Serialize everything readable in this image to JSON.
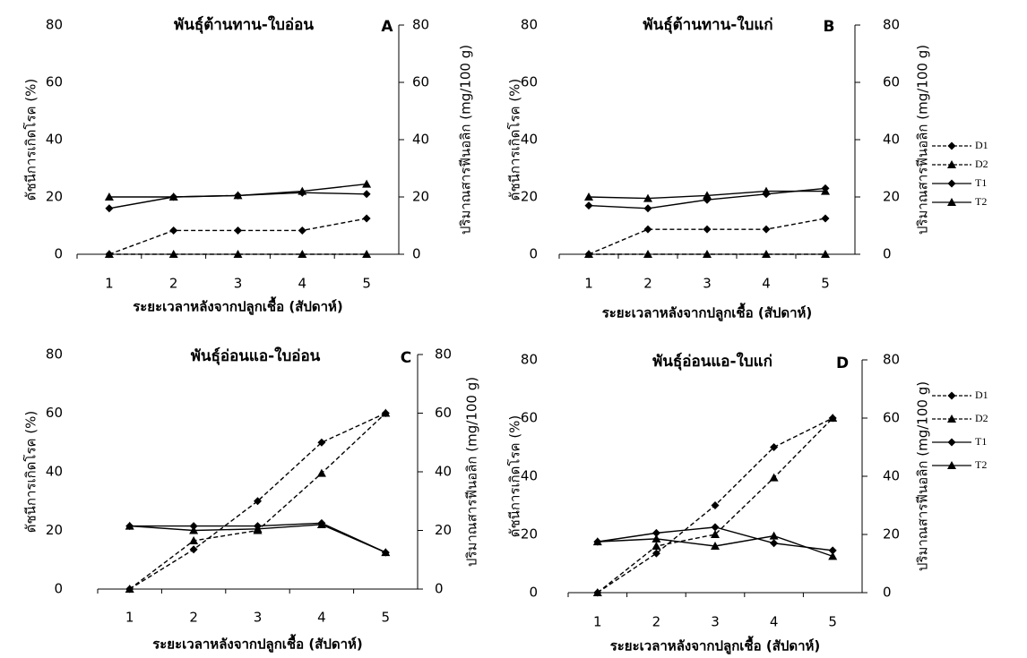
{
  "chart_data": [
    {
      "type": "line",
      "title": "พันธุ์ต้านทาน-ใบอ่อน",
      "label": "A",
      "x_label": "ระยะเวลาหลังจากปลูกเชื้อ (สัปดาห์)",
      "y_label": "ดัชนีการเกิดโรค (%)",
      "y2_label": "ปริมาณสารฟีนอลิก (mg/100 g)",
      "categories": [
        "1",
        "2",
        "3",
        "4",
        "5"
      ],
      "ylim": [
        0,
        80
      ],
      "yticks": [
        0,
        20,
        40,
        60,
        80
      ],
      "y2lim": [
        0,
        80
      ],
      "y2ticks": [
        0,
        20,
        40,
        60,
        80
      ],
      "series": [
        {
          "name": "D1",
          "color": "#000000",
          "dash": "dashed",
          "marker": "diamond",
          "values": [
            0,
            8.3,
            8.3,
            8.3,
            12.5
          ]
        },
        {
          "name": "D2",
          "color": "#000000",
          "dash": "dashed",
          "marker": "triangle",
          "values": [
            0,
            0,
            0,
            0,
            0
          ]
        },
        {
          "name": "T1",
          "color": "#000000",
          "dash": "solid",
          "marker": "diamond",
          "axis": "y2",
          "values": [
            16,
            20,
            20.5,
            21.5,
            21
          ]
        },
        {
          "name": "T2",
          "color": "#000000",
          "dash": "solid",
          "marker": "triangle",
          "axis": "y2",
          "values": [
            20,
            20,
            20.5,
            22,
            24.5
          ]
        }
      ]
    },
    {
      "type": "line",
      "title": "พันธุ์ต้านทาน-ใบแก่",
      "label": "B",
      "x_label": "ระยะเวลาหลังจากปลูกเชื้อ (สัปดาห์)",
      "y_label": "ดัชนีการเกิดโรค (%)",
      "y2_label": "ปริมาณสารฟีนอลิก (mg/100 g)",
      "categories": [
        "1",
        "2",
        "3",
        "4",
        "5"
      ],
      "ylim": [
        0,
        80
      ],
      "yticks": [
        0,
        20,
        40,
        60,
        80
      ],
      "y2lim": [
        0,
        80
      ],
      "y2ticks": [
        0,
        20,
        40,
        60,
        80
      ],
      "legend": "right",
      "series": [
        {
          "name": "D1",
          "color": "#000000",
          "dash": "dashed",
          "marker": "diamond",
          "values": [
            0,
            8.7,
            8.7,
            8.7,
            12.5
          ]
        },
        {
          "name": "D2",
          "color": "#000000",
          "dash": "dashed",
          "marker": "triangle",
          "values": [
            0,
            0,
            0,
            0,
            0
          ]
        },
        {
          "name": "T1",
          "color": "#000000",
          "dash": "solid",
          "marker": "diamond",
          "axis": "y2",
          "values": [
            17,
            16,
            19,
            21,
            23
          ]
        },
        {
          "name": "T2",
          "color": "#000000",
          "dash": "solid",
          "marker": "triangle",
          "axis": "y2",
          "values": [
            20,
            19.5,
            20.5,
            22,
            22
          ]
        }
      ]
    },
    {
      "type": "line",
      "title": "พันธุ์อ่อนแอ-ใบอ่อน",
      "label": "C",
      "x_label": "ระยะเวลาหลังจากปลูกเชื้อ (สัปดาห์)",
      "y_label": "ดัชนีการเกิดโรค (%)",
      "y2_label": "ปริมาณสารฟีนอลิก (mg/100 g)",
      "categories": [
        "1",
        "2",
        "3",
        "4",
        "5"
      ],
      "ylim": [
        0,
        80
      ],
      "yticks": [
        0,
        20,
        40,
        60,
        80
      ],
      "y2lim": [
        0,
        80
      ],
      "y2ticks": [
        0,
        20,
        40,
        60,
        80
      ],
      "series": [
        {
          "name": "D1",
          "color": "#000000",
          "dash": "dashed",
          "marker": "diamond",
          "values": [
            0,
            13.5,
            30,
            50,
            60
          ]
        },
        {
          "name": "D2",
          "color": "#000000",
          "dash": "dashed",
          "marker": "triangle",
          "values": [
            0,
            16.5,
            20,
            39.5,
            60
          ]
        },
        {
          "name": "T1",
          "color": "#000000",
          "dash": "solid",
          "marker": "diamond",
          "axis": "y2",
          "values": [
            21.5,
            21.5,
            21.5,
            22.5,
            12.5
          ]
        },
        {
          "name": "T2",
          "color": "#000000",
          "dash": "solid",
          "marker": "triangle",
          "axis": "y2",
          "values": [
            21.5,
            20,
            20.5,
            22,
            12.5
          ]
        }
      ]
    },
    {
      "type": "line",
      "title": "พันธุ์อ่อนแอ-ใบแก่",
      "label": "D",
      "x_label": "ระยะเวลาหลังจากปลูกเชื้อ (สัปดาห์)",
      "y_label": "ดัชนีการเกิดโรค (%)",
      "y2_label": "ปริมาณสารฟีนอลิก (mg/100 g)",
      "categories": [
        "1",
        "2",
        "3",
        "4",
        "5"
      ],
      "ylim": [
        0,
        80
      ],
      "yticks": [
        0,
        20,
        40,
        60,
        80
      ],
      "y2lim": [
        0,
        80
      ],
      "y2ticks": [
        0,
        20,
        40,
        60,
        80
      ],
      "legend": "right",
      "series": [
        {
          "name": "D1",
          "color": "#000000",
          "dash": "dashed",
          "marker": "diamond",
          "values": [
            0,
            13.5,
            30,
            50,
            60
          ]
        },
        {
          "name": "D2",
          "color": "#000000",
          "dash": "dashed",
          "marker": "triangle",
          "values": [
            0,
            16,
            20,
            39.5,
            60
          ]
        },
        {
          "name": "T1",
          "color": "#000000",
          "dash": "solid",
          "marker": "diamond",
          "axis": "y2",
          "values": [
            17.5,
            20.5,
            22.5,
            17,
            14.5
          ]
        },
        {
          "name": "T2",
          "color": "#000000",
          "dash": "solid",
          "marker": "triangle",
          "axis": "y2",
          "values": [
            17.5,
            18.5,
            16,
            19.5,
            12.5
          ]
        }
      ]
    }
  ]
}
